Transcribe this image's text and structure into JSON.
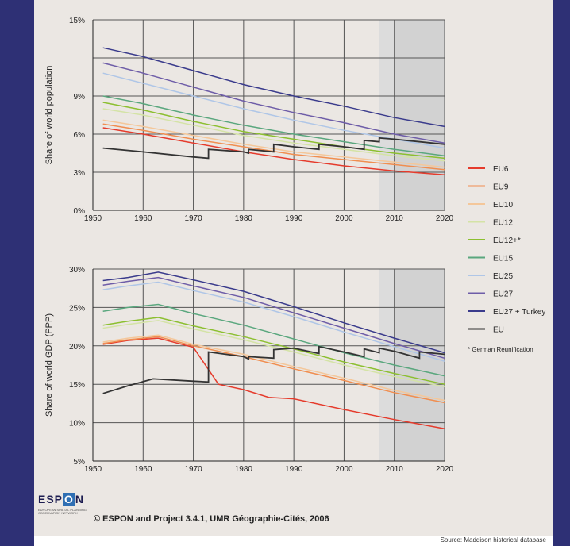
{
  "chart_data": [
    {
      "type": "line",
      "title": "",
      "ylabel": "Share of world population",
      "xlabel": "",
      "xlim": [
        1950,
        2020
      ],
      "ylim": [
        0,
        15
      ],
      "x_ticks": [
        "1950",
        "1960",
        "1970",
        "1980",
        "1990",
        "2000",
        "2010",
        "2020"
      ],
      "y_ticks": [
        "0%",
        "3%",
        "6%",
        "9%",
        "15%"
      ],
      "shaded_projection_from": 2007,
      "series": [
        {
          "name": "EU6",
          "color": "#e53b2c",
          "x": [
            1952,
            1960,
            1970,
            1980,
            1990,
            2000,
            2010,
            2020
          ],
          "y": [
            6.5,
            6.0,
            5.3,
            4.6,
            4.0,
            3.5,
            3.1,
            2.8
          ]
        },
        {
          "name": "EU9",
          "color": "#f08e50",
          "x": [
            1952,
            1960,
            1970,
            1980,
            1990,
            2000,
            2010,
            2020
          ],
          "y": [
            6.8,
            6.3,
            5.6,
            5.0,
            4.4,
            4.0,
            3.6,
            3.2
          ]
        },
        {
          "name": "EU10",
          "color": "#f4c79a",
          "x": [
            1952,
            1960,
            1970,
            1980,
            1990,
            2000,
            2010,
            2020
          ],
          "y": [
            7.1,
            6.6,
            5.9,
            5.2,
            4.6,
            4.2,
            3.8,
            3.4
          ]
        },
        {
          "name": "EU12",
          "color": "#d4e3a6",
          "x": [
            1952,
            1960,
            1970,
            1980,
            1990,
            2000,
            2010,
            2020
          ],
          "y": [
            8.0,
            7.5,
            6.7,
            5.9,
            5.3,
            4.8,
            4.3,
            3.9
          ]
        },
        {
          "name": "EU12+*",
          "color": "#8cbf30",
          "x": [
            1952,
            1960,
            1970,
            1980,
            1990,
            2000,
            2010,
            2020
          ],
          "y": [
            8.5,
            7.9,
            7.0,
            6.2,
            5.6,
            5.0,
            4.5,
            4.1
          ]
        },
        {
          "name": "EU15",
          "color": "#5aa77e",
          "x": [
            1952,
            1960,
            1970,
            1980,
            1990,
            2000,
            2010,
            2020
          ],
          "y": [
            9.0,
            8.4,
            7.5,
            6.7,
            6.0,
            5.4,
            4.8,
            4.3
          ]
        },
        {
          "name": "EU25",
          "color": "#afc6e7",
          "x": [
            1952,
            1960,
            1970,
            1980,
            1990,
            2000,
            2010,
            2020
          ],
          "y": [
            10.8,
            10.0,
            9.0,
            8.0,
            7.1,
            6.3,
            5.6,
            4.9
          ]
        },
        {
          "name": "EU27",
          "color": "#6e5da8",
          "x": [
            1952,
            1960,
            1970,
            1980,
            1990,
            2000,
            2010,
            2020
          ],
          "y": [
            11.6,
            10.8,
            9.7,
            8.6,
            7.7,
            6.9,
            6.0,
            5.3
          ]
        },
        {
          "name": "EU27 + Turkey",
          "color": "#3a3b8c",
          "x": [
            1952,
            1960,
            1970,
            1980,
            1990,
            2000,
            2010,
            2020
          ],
          "y": [
            12.8,
            12.1,
            11.0,
            9.9,
            9.0,
            8.2,
            7.3,
            6.6
          ]
        },
        {
          "name": "EU",
          "color": "#333333",
          "x": [
            1952,
            1960,
            1970,
            1973,
            1973,
            1980,
            1981,
            1981,
            1986,
            1986,
            1990,
            1995,
            1995,
            2000,
            2004,
            2004,
            2007,
            2007,
            2010,
            2020
          ],
          "y": [
            4.9,
            4.6,
            4.2,
            4.1,
            4.8,
            4.6,
            4.5,
            4.8,
            4.6,
            5.2,
            5.0,
            4.8,
            5.2,
            5.0,
            4.8,
            5.5,
            5.4,
            5.7,
            5.6,
            5.2
          ]
        }
      ]
    },
    {
      "type": "line",
      "title": "",
      "ylabel": "Share of world GDP (PPP)",
      "xlabel": "",
      "xlim": [
        1950,
        2020
      ],
      "ylim": [
        5,
        30
      ],
      "x_ticks": [
        "1950",
        "1960",
        "1970",
        "1980",
        "1990",
        "2000",
        "2010",
        "2020"
      ],
      "y_ticks": [
        "5%",
        "10%",
        "15%",
        "20%",
        "25%",
        "30%"
      ],
      "shaded_projection_from": 2007,
      "series": [
        {
          "name": "EU6",
          "color": "#e53b2c",
          "x": [
            1952,
            1957,
            1963,
            1970,
            1975,
            1980,
            1985,
            1990,
            2000,
            2010,
            2020
          ],
          "y": [
            20.2,
            20.7,
            21.0,
            19.8,
            15.0,
            14.3,
            13.3,
            13.1,
            11.7,
            10.4,
            9.2
          ]
        },
        {
          "name": "EU9",
          "color": "#f08e50",
          "x": [
            1952,
            1957,
            1963,
            1970,
            1980,
            1990,
            2000,
            2010,
            2020
          ],
          "y": [
            20.3,
            20.8,
            21.2,
            20.0,
            18.6,
            17.0,
            15.5,
            13.9,
            12.6
          ]
        },
        {
          "name": "EU10",
          "color": "#f4c79a",
          "x": [
            1952,
            1957,
            1963,
            1970,
            1980,
            1990,
            2000,
            2010,
            2020
          ],
          "y": [
            20.5,
            21.0,
            21.4,
            20.2,
            18.9,
            17.3,
            15.8,
            14.2,
            12.9
          ]
        },
        {
          "name": "EU12",
          "color": "#d4e3a6",
          "x": [
            1952,
            1957,
            1963,
            1970,
            1980,
            1990,
            2000,
            2010,
            2020
          ],
          "y": [
            22.3,
            22.8,
            23.3,
            22.2,
            20.8,
            19.2,
            17.5,
            16.0,
            14.7
          ]
        },
        {
          "name": "EU12+*",
          "color": "#8cbf30",
          "x": [
            1952,
            1957,
            1963,
            1970,
            1980,
            1990,
            2000,
            2010,
            2020
          ],
          "y": [
            22.7,
            23.2,
            23.7,
            22.6,
            21.2,
            19.6,
            17.9,
            16.4,
            15.0
          ]
        },
        {
          "name": "EU15",
          "color": "#5aa77e",
          "x": [
            1952,
            1957,
            1963,
            1970,
            1980,
            1990,
            2000,
            2010,
            2020
          ],
          "y": [
            24.5,
            25.0,
            25.4,
            24.2,
            22.7,
            20.9,
            19.1,
            17.5,
            16.1
          ]
        },
        {
          "name": "EU25",
          "color": "#afc6e7",
          "x": [
            1952,
            1957,
            1963,
            1970,
            1980,
            1990,
            2000,
            2010,
            2020
          ],
          "y": [
            27.3,
            27.8,
            28.3,
            27.2,
            25.7,
            23.8,
            21.8,
            19.9,
            18.0
          ]
        },
        {
          "name": "EU27",
          "color": "#6e5da8",
          "x": [
            1952,
            1957,
            1963,
            1970,
            1980,
            1990,
            2000,
            2010,
            2020
          ],
          "y": [
            27.9,
            28.4,
            28.9,
            27.8,
            26.3,
            24.3,
            22.3,
            20.3,
            18.4
          ]
        },
        {
          "name": "EU27 + Turkey",
          "color": "#3a3b8c",
          "x": [
            1952,
            1957,
            1963,
            1970,
            1980,
            1990,
            2000,
            2010,
            2020
          ],
          "y": [
            28.5,
            28.9,
            29.6,
            28.6,
            27.1,
            25.1,
            23.0,
            21.0,
            19.1
          ]
        },
        {
          "name": "EU",
          "color": "#333333",
          "x": [
            1952,
            1957,
            1962,
            1970,
            1973,
            1973,
            1980,
            1981,
            1981,
            1986,
            1986,
            1990,
            1995,
            1995,
            2000,
            2004,
            2004,
            2007,
            2007,
            2010,
            2015,
            2015,
            2020
          ],
          "y": [
            13.8,
            14.8,
            15.7,
            15.4,
            15.3,
            19.2,
            18.6,
            18.3,
            18.6,
            18.4,
            19.5,
            19.7,
            19.0,
            19.9,
            19.2,
            18.6,
            19.6,
            19.1,
            19.7,
            19.3,
            18.4,
            19.2,
            18.9
          ]
        }
      ]
    }
  ],
  "legend": {
    "items": [
      {
        "label": "EU6",
        "color": "#e53b2c"
      },
      {
        "label": "EU9",
        "color": "#f08e50"
      },
      {
        "label": "EU10",
        "color": "#f4c79a"
      },
      {
        "label": "EU12",
        "color": "#d4e3a6"
      },
      {
        "label": "EU12+*",
        "color": "#8cbf30"
      },
      {
        "label": "EU15",
        "color": "#5aa77e"
      },
      {
        "label": "EU25",
        "color": "#afc6e7"
      },
      {
        "label": "EU27",
        "color": "#6e5da8"
      },
      {
        "label": "EU27 + Turkey",
        "color": "#3a3b8c"
      },
      {
        "label": "EU",
        "color": "#333333"
      }
    ],
    "footnote": "* German Reunification"
  },
  "logo": {
    "text_left": "ESP",
    "text_box": "O",
    "text_right": "N",
    "tagline": "EUROPEAN SPATIAL PLANNING OBSERVATION NETWORK"
  },
  "copyright": "© ESPON and Project 3.4.1, UMR Géographie-Cités, 2006",
  "source": "Source: Maddison historical database",
  "colors": {
    "background_frame": "#2e3075",
    "panel": "#ebe7e3",
    "projection_shade": "#d2d2d2",
    "grid": "#555555"
  }
}
